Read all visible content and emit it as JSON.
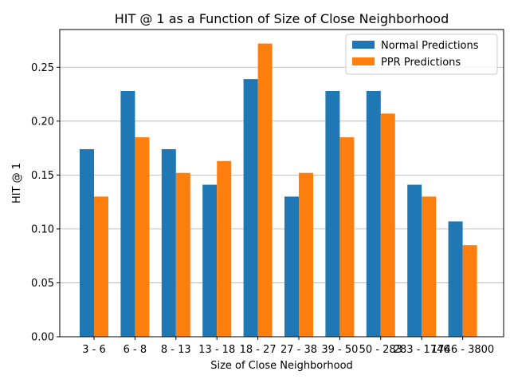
{
  "chart_data": {
    "type": "bar",
    "title": "HIT @ 1 as a Function of Size of Close Neighborhood",
    "xlabel": "Size of Close Neighborhood",
    "ylabel": "HIT @ 1",
    "categories": [
      "3 - 6",
      "6 - 8",
      "8 - 13",
      "13 - 18",
      "18 - 27",
      "27 - 38",
      "39 - 50",
      "50 - 283",
      "283 - 1746",
      "1746 - 3800"
    ],
    "series": [
      {
        "name": "Normal Predictions",
        "color": "#1f77b4",
        "values": [
          0.174,
          0.228,
          0.174,
          0.141,
          0.239,
          0.13,
          0.228,
          0.228,
          0.141,
          0.107
        ]
      },
      {
        "name": "PPR Predictions",
        "color": "#ff7f0e",
        "values": [
          0.13,
          0.185,
          0.152,
          0.163,
          0.272,
          0.152,
          0.185,
          0.207,
          0.13,
          0.085
        ]
      }
    ],
    "ylim": [
      0,
      0.285
    ],
    "yticks": [
      "0.00",
      "0.05",
      "0.10",
      "0.15",
      "0.20",
      "0.25"
    ],
    "grid": "y",
    "legend_position": "top-right"
  }
}
